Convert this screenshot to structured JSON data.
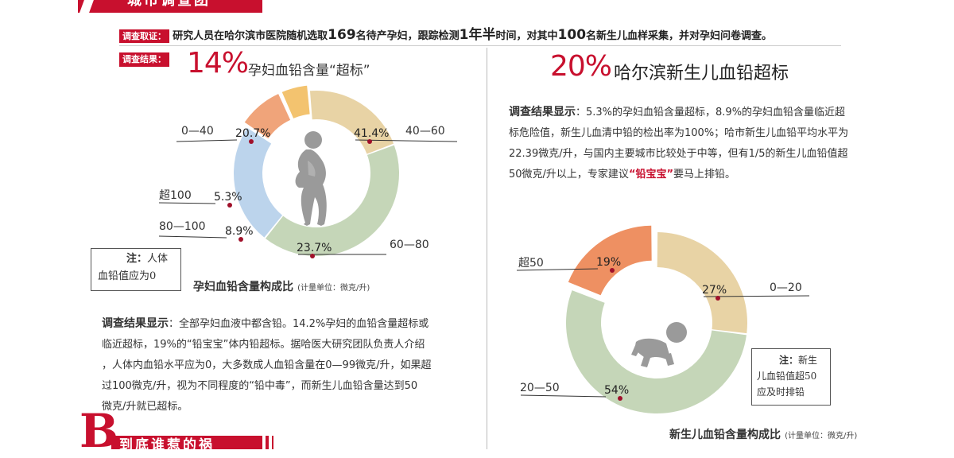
{
  "header": {
    "section_title": "城市调查团",
    "bottom_letter": "B",
    "bottom_title": "到底谁惹的祸"
  },
  "method": {
    "tag": "调查取证：",
    "text_a": "研究人员在哈尔滨市医院随机选取",
    "num_a": "169",
    "text_b": "名待产孕妇，跟踪检测",
    "num_b": "1年半",
    "text_c": "时间，对其中",
    "num_c": "100",
    "text_d": "名新生儿血样采集，并对孕妇问卷调查。"
  },
  "left": {
    "tag": "调查结果：",
    "big_pct": "14%",
    "headline": "孕妇血铅含量“超标”",
    "chart_caption": "孕妇血铅含量构成比",
    "unit": "(计量单位：微克/升)",
    "note_title": "注：",
    "note_line1": "人体",
    "note_line2": "血铅值应为0",
    "result_label": "调查结果显示",
    "result_lines": [
      "：全部孕妇血液中都含铅。14.2%孕妇的血铅含量超标或",
      "临近超标，19%的“铅宝宝”体内铅超标。据哈医大研究团队负责人介绍",
      "，人体内血铅水平应为0，大多数成人血铅含量在0—99微克/升，如果超",
      "过100微克/升，视为不同程度的“铅中毒”，而新生儿血铅含量达到50",
      "微克/升就已超标。"
    ],
    "bold_term": "“铅中毒”"
  },
  "right": {
    "big_pct": "20%",
    "headline": "哈尔滨新生儿血铅超标",
    "result_label": "调查结果显示",
    "result_lines": [
      "：5.3%的孕妇血铅含量超标，8.9%的孕妇血铅含量临近超",
      "标危险值，新生儿血清中铅的检出率为100%；哈市新生儿血铅平均水平为",
      "22.39微克/升，与国内主要城市比较处于中等，但有1/5的新生儿血铅值超",
      "50微克/升以上，专家建议"
    ],
    "red_term": "“铅宝宝”",
    "tail": "要马上排铅。",
    "chart_caption": "新生儿血铅含量构成比",
    "unit": "(计量单位：微克/升)",
    "note_title": "注：",
    "note_line1": "新生",
    "note_line2": "儿血铅值超50",
    "note_line3": "应及时排铅"
  },
  "chart_data": [
    {
      "type": "pie",
      "title": "孕妇血铅含量构成比",
      "categories": [
        "0—40",
        "40—60",
        "60—80",
        "80—100",
        "超100"
      ],
      "values": [
        20.7,
        41.4,
        23.7,
        8.9,
        5.3
      ],
      "labels": [
        "20.7%",
        "41.4%",
        "23.7%",
        "8.9%",
        "5.3%"
      ],
      "colors": [
        "#e8d3a5",
        "#c5d6b8",
        "#bcd4ec",
        "#f0a47a",
        "#f3c36f"
      ],
      "unit": "(计量单位：微克/升)"
    },
    {
      "type": "pie",
      "title": "新生儿血铅含量构成比",
      "categories": [
        "0—20",
        "20—50",
        "超50"
      ],
      "values": [
        27,
        54,
        19
      ],
      "labels": [
        "27%",
        "54%",
        "19%"
      ],
      "colors": [
        "#e8d3a5",
        "#c5d6b8",
        "#ee9062"
      ],
      "unit": "(计量单位：微克/升)"
    }
  ]
}
